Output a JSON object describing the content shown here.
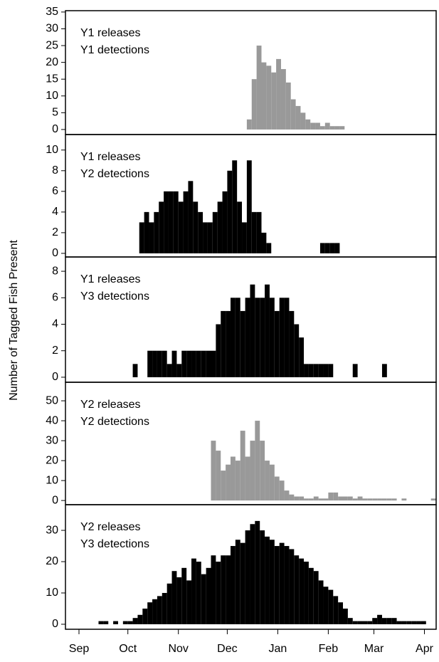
{
  "ylabel": "Number of Tagged Fish Present",
  "chart_data": [
    {
      "type": "histogram",
      "annotations": [
        "Y1 releases",
        "Y1 detections"
      ],
      "color": "#999999",
      "bins": [
        103,
        106,
        109,
        112,
        115,
        118,
        121,
        124,
        127,
        130,
        133,
        136,
        139,
        142,
        145,
        148,
        151,
        154,
        157,
        160,
        163
      ],
      "values": [
        3,
        15,
        25,
        20,
        19,
        17,
        21,
        18,
        14,
        9,
        7,
        5,
        3,
        2,
        2,
        1,
        2,
        1,
        1,
        1
      ],
      "xlim": [
        -8.3,
        219.2
      ],
      "ylim": [
        -1.5,
        35.4
      ],
      "yticks": [
        0,
        5,
        10,
        15,
        20,
        25,
        30,
        35
      ]
    },
    {
      "type": "histogram",
      "annotations": [
        "Y1 releases",
        "Y2 detections"
      ],
      "color": "#000000",
      "bins": [
        37,
        40,
        43,
        46,
        49,
        52,
        55,
        58,
        61,
        64,
        67,
        70,
        73,
        76,
        79,
        82,
        85,
        88,
        91,
        94,
        97,
        100,
        103,
        106,
        109,
        112,
        115,
        118,
        121,
        124,
        127,
        130,
        133,
        136,
        139,
        142,
        145,
        148,
        151,
        154,
        157,
        160
      ],
      "values": [
        3,
        4,
        3,
        4,
        5,
        6,
        6,
        6,
        5,
        6,
        7,
        5,
        4,
        3,
        3,
        4,
        5,
        6,
        8,
        9,
        5,
        3,
        9,
        4,
        4,
        2,
        1,
        0,
        0,
        0,
        0,
        0,
        0,
        0,
        0,
        0,
        0,
        1,
        1,
        1,
        1
      ],
      "xlim": [
        -8.3,
        219.2
      ],
      "ylim": [
        -0.35,
        11.5
      ],
      "yticks": [
        0,
        2,
        4,
        6,
        8,
        10
      ]
    },
    {
      "type": "histogram",
      "annotations": [
        "Y1 releases",
        "Y3 detections"
      ],
      "color": "#000000",
      "bins": [
        33,
        36,
        39,
        42,
        45,
        48,
        51,
        54,
        57,
        60,
        63,
        66,
        69,
        72,
        75,
        78,
        81,
        84,
        87,
        90,
        93,
        96,
        99,
        102,
        105,
        108,
        111,
        114,
        117,
        120,
        123,
        126,
        129,
        132,
        135,
        138,
        141,
        144,
        147,
        150,
        153,
        156,
        159,
        162,
        165,
        168,
        171,
        174,
        177,
        180,
        183,
        186,
        189
      ],
      "values": [
        1,
        0,
        0,
        2,
        2,
        2,
        2,
        1,
        2,
        1,
        2,
        2,
        2,
        2,
        2,
        2,
        2,
        4,
        5,
        5,
        6,
        6,
        5,
        6,
        7,
        6,
        6,
        7,
        6,
        5,
        6,
        6,
        5,
        4,
        3,
        1,
        1,
        1,
        1,
        1,
        1,
        0,
        0,
        0,
        0,
        1,
        0,
        0,
        0,
        0,
        0,
        1
      ],
      "xlim": [
        -8.3,
        219.2
      ],
      "ylim": [
        -0.38,
        9.08
      ],
      "yticks": [
        0,
        2,
        4,
        6,
        8
      ]
    },
    {
      "type": "histogram",
      "annotations": [
        "Y2 releases",
        "Y2 detections"
      ],
      "color": "#999999",
      "bins": [
        81,
        84,
        87,
        90,
        93,
        96,
        99,
        102,
        105,
        108,
        111,
        114,
        117,
        120,
        123,
        126,
        129,
        132,
        135,
        138,
        141,
        144,
        147,
        150,
        153,
        156,
        159,
        162,
        165,
        168,
        171,
        174,
        177,
        180,
        183,
        186,
        189,
        192,
        195,
        198,
        201,
        204,
        207,
        210,
        213,
        216,
        219
      ],
      "values": [
        30,
        25,
        15,
        18,
        22,
        20,
        35,
        22,
        30,
        40,
        30,
        20,
        18,
        12,
        10,
        5,
        3,
        2,
        2,
        1,
        1,
        2,
        1,
        1,
        4,
        4,
        2,
        2,
        2,
        1,
        2,
        1,
        1,
        1,
        1,
        1,
        1,
        1,
        0,
        1,
        0,
        0,
        0,
        0,
        0,
        1
      ],
      "xlim": [
        -8.3,
        219.2
      ],
      "ylim": [
        -2.1,
        59.3
      ],
      "yticks": [
        0,
        10,
        20,
        30,
        40,
        50
      ]
    },
    {
      "type": "histogram",
      "annotations": [
        "Y2 releases",
        "Y3 detections"
      ],
      "color": "#000000",
      "bins": [
        12,
        15,
        18,
        21,
        24,
        27,
        30,
        33,
        36,
        39,
        42,
        45,
        48,
        51,
        54,
        57,
        60,
        63,
        66,
        69,
        72,
        75,
        78,
        81,
        84,
        87,
        90,
        93,
        96,
        99,
        102,
        105,
        108,
        111,
        114,
        117,
        120,
        123,
        126,
        129,
        132,
        135,
        138,
        141,
        144,
        147,
        150,
        153,
        156,
        159,
        162,
        165,
        168,
        171,
        174,
        177,
        180,
        183,
        186,
        189,
        192,
        195,
        198,
        201,
        204,
        207,
        210,
        213
      ],
      "values": [
        1,
        1,
        0,
        1,
        0,
        1,
        1,
        2,
        3,
        5,
        7,
        8,
        9,
        10,
        13,
        17,
        15,
        18,
        14,
        21,
        20,
        16,
        18,
        22,
        20,
        22,
        22,
        25,
        27,
        26,
        30,
        32,
        33,
        30,
        28,
        27,
        25,
        26,
        25,
        24,
        22,
        21,
        20,
        18,
        17,
        14,
        12,
        11,
        9,
        7,
        5,
        2,
        1,
        1,
        1,
        1,
        2,
        3,
        2,
        2,
        2,
        1,
        1,
        1,
        1,
        1,
        1
      ],
      "xlim": [
        -8.3,
        219.2
      ],
      "ylim": [
        -1.6,
        38.2
      ],
      "yticks": [
        0,
        10,
        20,
        30
      ],
      "xticks": [
        {
          "value": 0,
          "label": "Sep"
        },
        {
          "value": 30,
          "label": "Oct"
        },
        {
          "value": 61,
          "label": "Nov"
        },
        {
          "value": 91,
          "label": "Dec"
        },
        {
          "value": 122,
          "label": "Jan"
        },
        {
          "value": 153,
          "label": "Feb"
        },
        {
          "value": 181,
          "label": "Mar"
        },
        {
          "value": 212,
          "label": "Apr"
        }
      ]
    }
  ]
}
